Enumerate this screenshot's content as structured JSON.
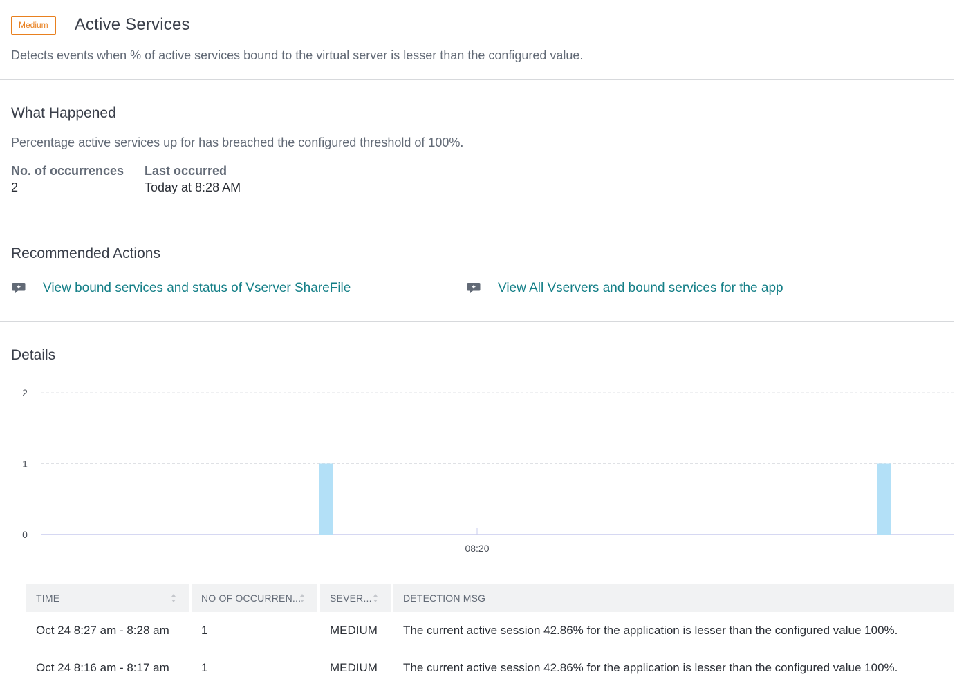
{
  "header": {
    "severity_badge": "Medium",
    "title": "Active Services",
    "description": "Detects events when % of active services bound to the virtual server is lesser than the configured value."
  },
  "what_happened": {
    "title": "What Happened",
    "text": "Percentage active services up for has breached the configured threshold of 100%.",
    "occurrences_label": "No. of occurrences",
    "occurrences_value": "2",
    "last_occurred_label": "Last occurred",
    "last_occurred_value": "Today at 8:28 AM"
  },
  "recommended": {
    "title": "Recommended Actions",
    "actions": [
      {
        "label": "View bound services and status of Vserver ShareFile",
        "icon": "chat-icon"
      },
      {
        "label": "View All Vservers and bound services for the app",
        "icon": "chat-icon"
      }
    ]
  },
  "details": {
    "title": "Details"
  },
  "chart_data": {
    "type": "bar",
    "y_ticks": [
      "0",
      "1",
      "2"
    ],
    "ylim": [
      0,
      2
    ],
    "x_ticks": [
      "08:20"
    ],
    "series": [
      {
        "values": [
          1,
          1
        ]
      }
    ],
    "bar_color": "#b3e0f7",
    "grid": true
  },
  "table": {
    "columns": [
      "TIME",
      "NO OF OCCURREN...",
      "SEVER...",
      "DETECTION MSG"
    ],
    "rows": [
      [
        "Oct 24 8:27 am - 8:28 am",
        "1",
        "MEDIUM",
        "The current active session 42.86% for the application is lesser than the configured value 100%."
      ],
      [
        "Oct 24 8:16 am - 8:17 am",
        "1",
        "MEDIUM",
        "The current active session 42.86% for the application is lesser than the configured value 100%."
      ]
    ]
  }
}
